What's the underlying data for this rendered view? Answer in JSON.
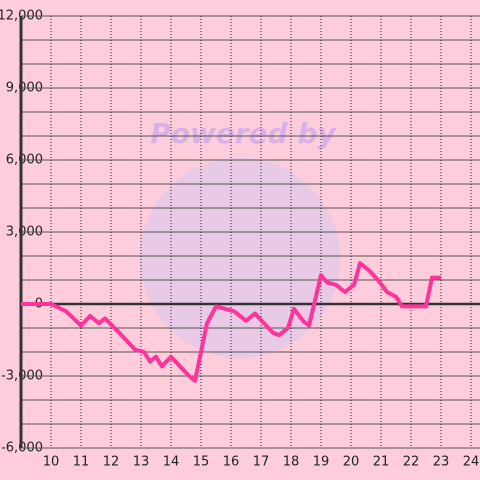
{
  "chart_data": {
    "type": "line",
    "watermark": "Powered by",
    "x": [
      9,
      9.5,
      10,
      10.5,
      11,
      11.3,
      11.6,
      11.8,
      12.2,
      12.5,
      12.8,
      13.1,
      13.3,
      13.5,
      13.7,
      14,
      14.3,
      14.6,
      14.8,
      15.2,
      15.5,
      15.8,
      16.1,
      16.5,
      16.8,
      17.1,
      17.4,
      17.6,
      17.9,
      18.1,
      18.4,
      18.6,
      19,
      19.2,
      19.5,
      19.8,
      20.1,
      20.3,
      20.6,
      20.9,
      21.2,
      21.5,
      21.7,
      22,
      22.5,
      22.7,
      23
    ],
    "series": [
      {
        "color": "#ff3399",
        "values": [
          0,
          0,
          0,
          -300,
          -900,
          -500,
          -800,
          -600,
          -1100,
          -1500,
          -1900,
          -2000,
          -2400,
          -2200,
          -2600,
          -2200,
          -2600,
          -3000,
          -3200,
          -800,
          -100,
          -200,
          -300,
          -700,
          -400,
          -800,
          -1200,
          -1300,
          -1000,
          -200,
          -700,
          -900,
          1200,
          900,
          800,
          500,
          800,
          1700,
          1400,
          1000,
          500,
          300,
          -100,
          -100,
          -100,
          1100,
          1100
        ]
      }
    ],
    "xlim": [
      9,
      24.3
    ],
    "xticks": [
      10,
      11,
      12,
      13,
      14,
      15,
      16,
      17,
      18,
      19,
      20,
      21,
      22,
      23,
      24
    ],
    "ylim": [
      -6000,
      12000
    ],
    "yticks": [
      {
        "value": -6000,
        "label": "-6,000"
      },
      {
        "value": -3000,
        "label": "-3,000"
      },
      0,
      {
        "value": 3000,
        "label": "3,000"
      },
      {
        "value": 6000,
        "label": "6,000"
      },
      {
        "value": 9000,
        "label": "9,000"
      },
      {
        "value": 12000,
        "label": "12,000"
      }
    ],
    "yminorticks": [
      -5000,
      -4000,
      -2000,
      -1000,
      1000,
      2000,
      4000,
      5000,
      7000,
      8000,
      10000,
      11000
    ],
    "grid": true
  }
}
